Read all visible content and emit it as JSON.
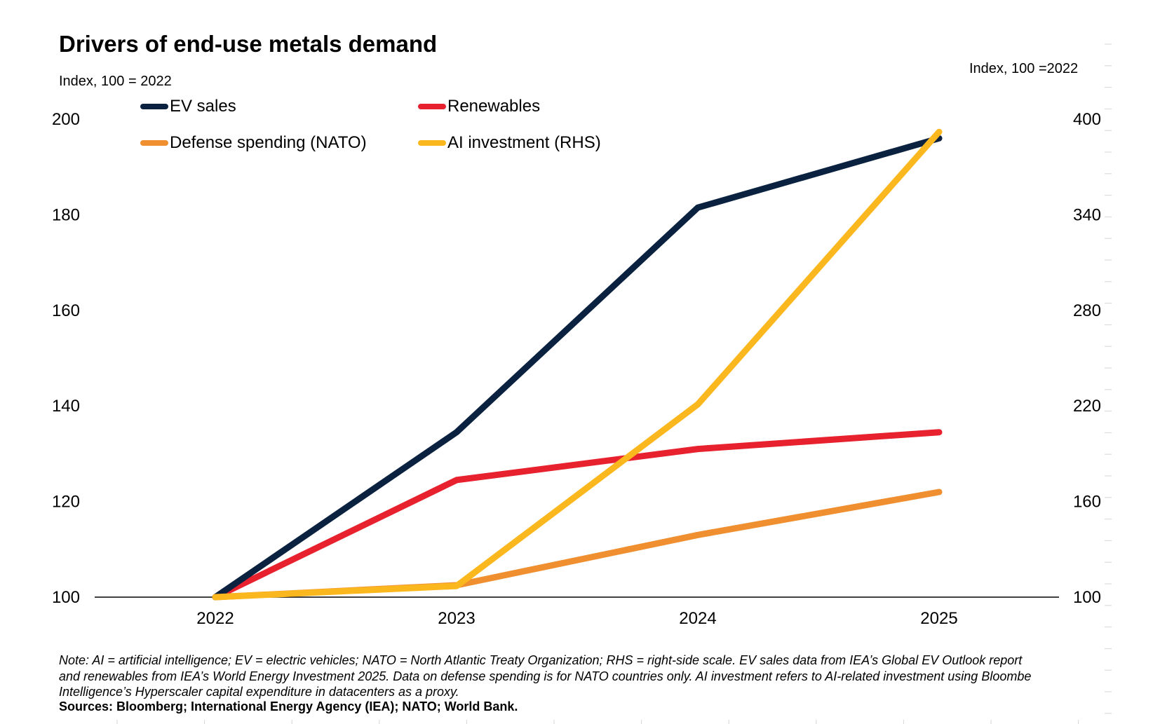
{
  "title": "Drivers of end-use metals demand",
  "left_axis_note": "Index, 100 = 2022",
  "right_axis_note": "Index, 100 =2022",
  "note": "Note: AI = artificial intelligence; EV = electric vehicles; NATO = North Atlantic Treaty Organization; RHS = right-side scale. EV sales data from IEA’s Global EV Outlook report\nand renewables from IEA’s World Energy Investment 2025. Data on defense spending is for NATO countries only. AI investment refers to AI-related investment using Bloombe\nIntelligence’s Hyperscaler capital expenditure in datacenters as a proxy.",
  "sources": "Sources: Bloomberg; International Energy Agency (IEA); NATO; World Bank.",
  "chart_data": {
    "type": "line",
    "x": [
      "2022",
      "2023",
      "2024",
      "2025"
    ],
    "yleft": {
      "lim": [
        100,
        200
      ],
      "ticks": [
        100,
        120,
        140,
        160,
        180,
        200
      ]
    },
    "yright": {
      "lim": [
        100,
        400
      ],
      "ticks": [
        100,
        160,
        220,
        280,
        340,
        400
      ]
    },
    "grid": false,
    "legend": "top-left",
    "series": [
      {
        "name": "EV sales",
        "axis": "left",
        "color": "#0a2240",
        "values": [
          100,
          134.5,
          181.5,
          196
        ]
      },
      {
        "name": "Renewables",
        "axis": "left",
        "color": "#e8212e",
        "values": [
          100,
          124.5,
          131,
          134.5
        ]
      },
      {
        "name": "Defense spending (NATO)",
        "axis": "left",
        "color": "#f08f30",
        "values": [
          100,
          102.5,
          113,
          122
        ]
      },
      {
        "name": "AI investment (RHS)",
        "axis": "right",
        "color": "#fbb81e",
        "values": [
          100,
          107,
          221,
          392
        ]
      }
    ]
  }
}
